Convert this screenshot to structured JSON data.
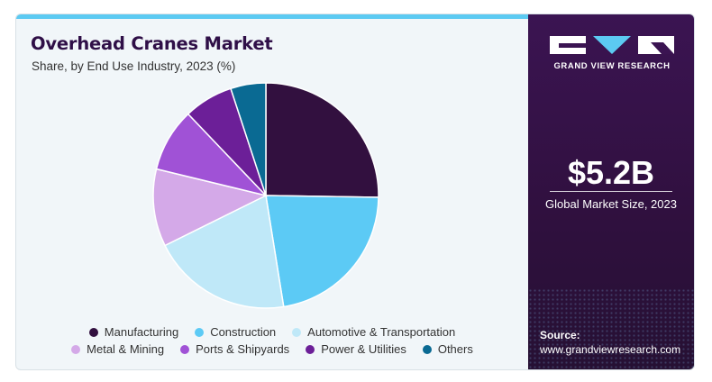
{
  "header": {
    "title": "Overhead Cranes Market",
    "subtitle": "Share, by End Use Industry, 2023 (%)"
  },
  "chart_data": {
    "type": "pie",
    "title": "Overhead Cranes Market",
    "subtitle": "Share, by End Use Industry, 2023 (%)",
    "categories": [
      "Manufacturing",
      "Construction",
      "Automotive & Transportation",
      "Metal & Mining",
      "Ports & Shipyards",
      "Power & Utilities",
      "Others"
    ],
    "values": [
      25,
      22,
      20,
      11,
      9,
      7,
      5
    ],
    "colors": [
      "#32103f",
      "#5ccaf5",
      "#bfe8f8",
      "#d4a9e8",
      "#a052d6",
      "#6c1f98",
      "#0a6a93"
    ],
    "legend_position": "bottom"
  },
  "sidebar": {
    "brand": "GRAND VIEW RESEARCH",
    "market_size_value": "$5.2B",
    "market_size_label": "Global Market Size, 2023",
    "source_label": "Source:",
    "source_url": "www.grandviewresearch.com"
  }
}
